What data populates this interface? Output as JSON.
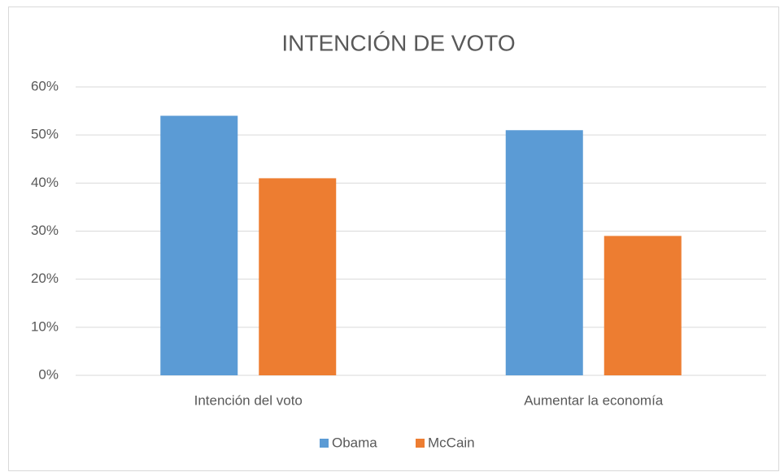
{
  "chart_data": {
    "type": "bar",
    "title": "INTENCIÓN DE VOTO",
    "categories": [
      "Intención del voto",
      "Aumentar la economía"
    ],
    "series": [
      {
        "name": "Obama",
        "color": "#5b9bd5",
        "values": [
          54,
          51
        ]
      },
      {
        "name": "McCain",
        "color": "#ed7d31",
        "values": [
          41,
          29
        ]
      }
    ],
    "ylim": [
      0,
      60
    ],
    "yticks": [
      {
        "value": 0,
        "label": "0%"
      },
      {
        "value": 10,
        "label": "10%"
      },
      {
        "value": 20,
        "label": "20%"
      },
      {
        "value": 30,
        "label": "30%"
      },
      {
        "value": 40,
        "label": "40%"
      },
      {
        "value": 50,
        "label": "50%"
      },
      {
        "value": 60,
        "label": "60%"
      }
    ],
    "grid": true,
    "legend": "bottom"
  }
}
